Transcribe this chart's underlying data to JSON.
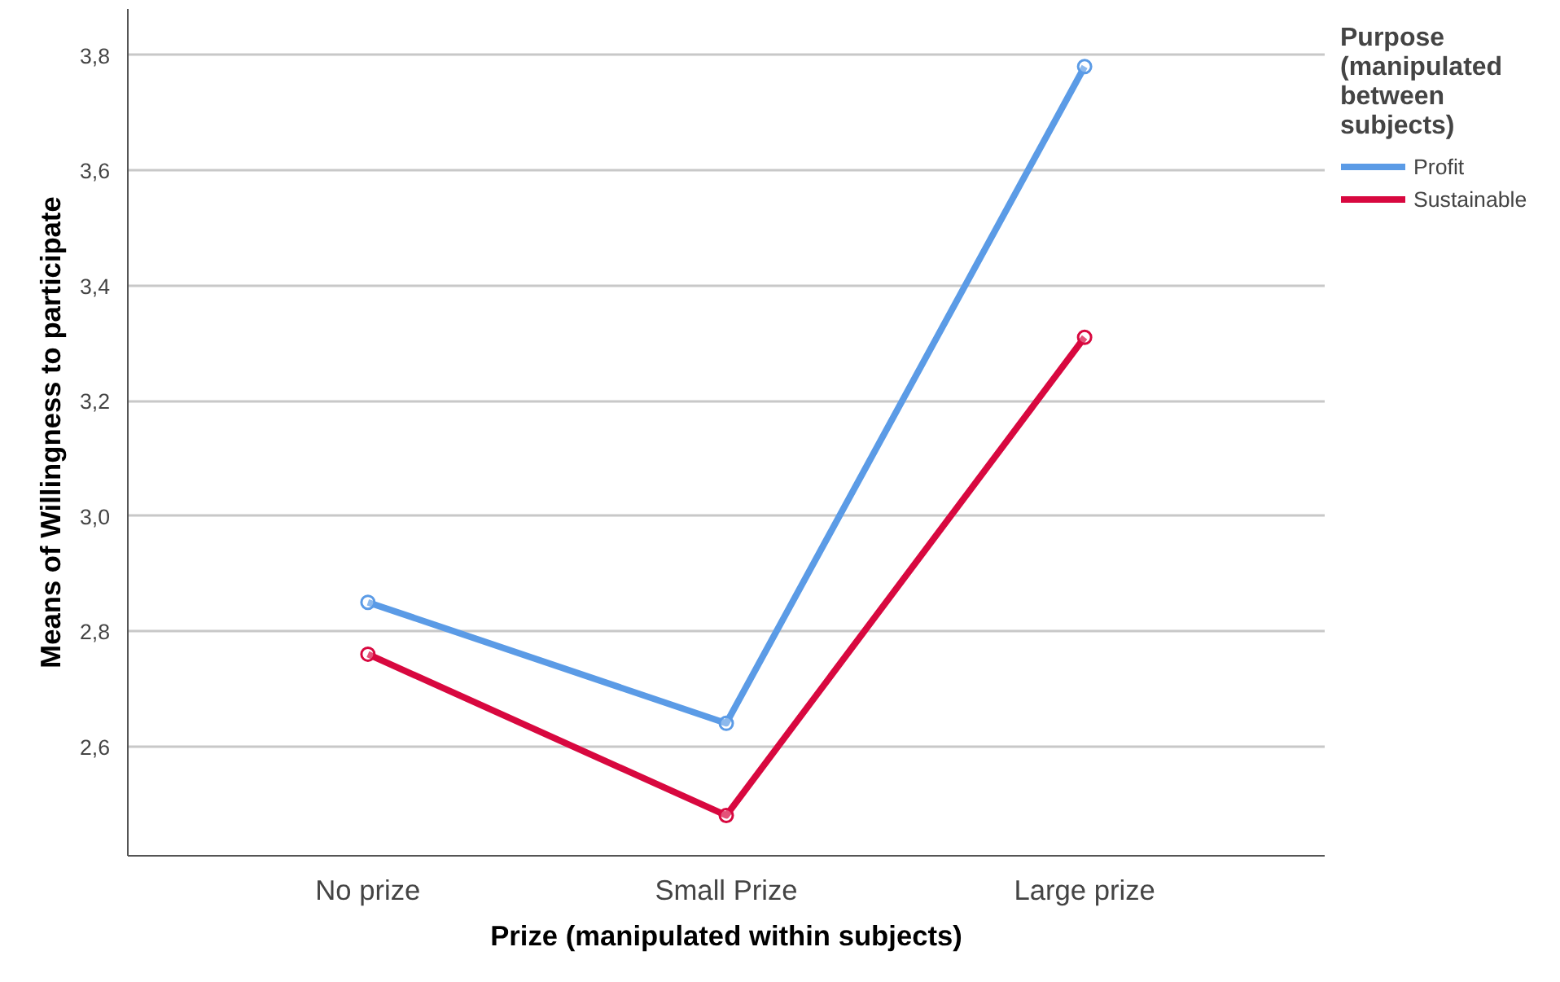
{
  "chart_data": {
    "type": "line",
    "xlabel": "Prize (manipulated within subjects)",
    "ylabel": "Means of Willingness to participate",
    "legend_title": "Purpose\n(manipulated\nbetween\nsubjects)",
    "categories": [
      "No prize",
      "Small Prize",
      "Large prize"
    ],
    "series": [
      {
        "name": "Profit",
        "color": "#5b9be6",
        "values": [
          2.85,
          2.64,
          3.78
        ]
      },
      {
        "name": "Sustainable",
        "color": "#d8083f",
        "values": [
          2.76,
          2.48,
          3.31
        ]
      }
    ],
    "ylim": [
      2.41,
      3.88
    ],
    "yticks": [
      {
        "value": 2.6,
        "label": "2,6"
      },
      {
        "value": 2.8,
        "label": "2,8"
      },
      {
        "value": 3.0,
        "label": "3,0"
      },
      {
        "value": 3.2,
        "label": "3,2"
      },
      {
        "value": 3.4,
        "label": "3,4"
      },
      {
        "value": 3.6,
        "label": "3,6"
      },
      {
        "value": 3.8,
        "label": "3,8"
      }
    ],
    "grid": "y",
    "legend": "top right",
    "marker": "circle",
    "line_style": "solid"
  }
}
